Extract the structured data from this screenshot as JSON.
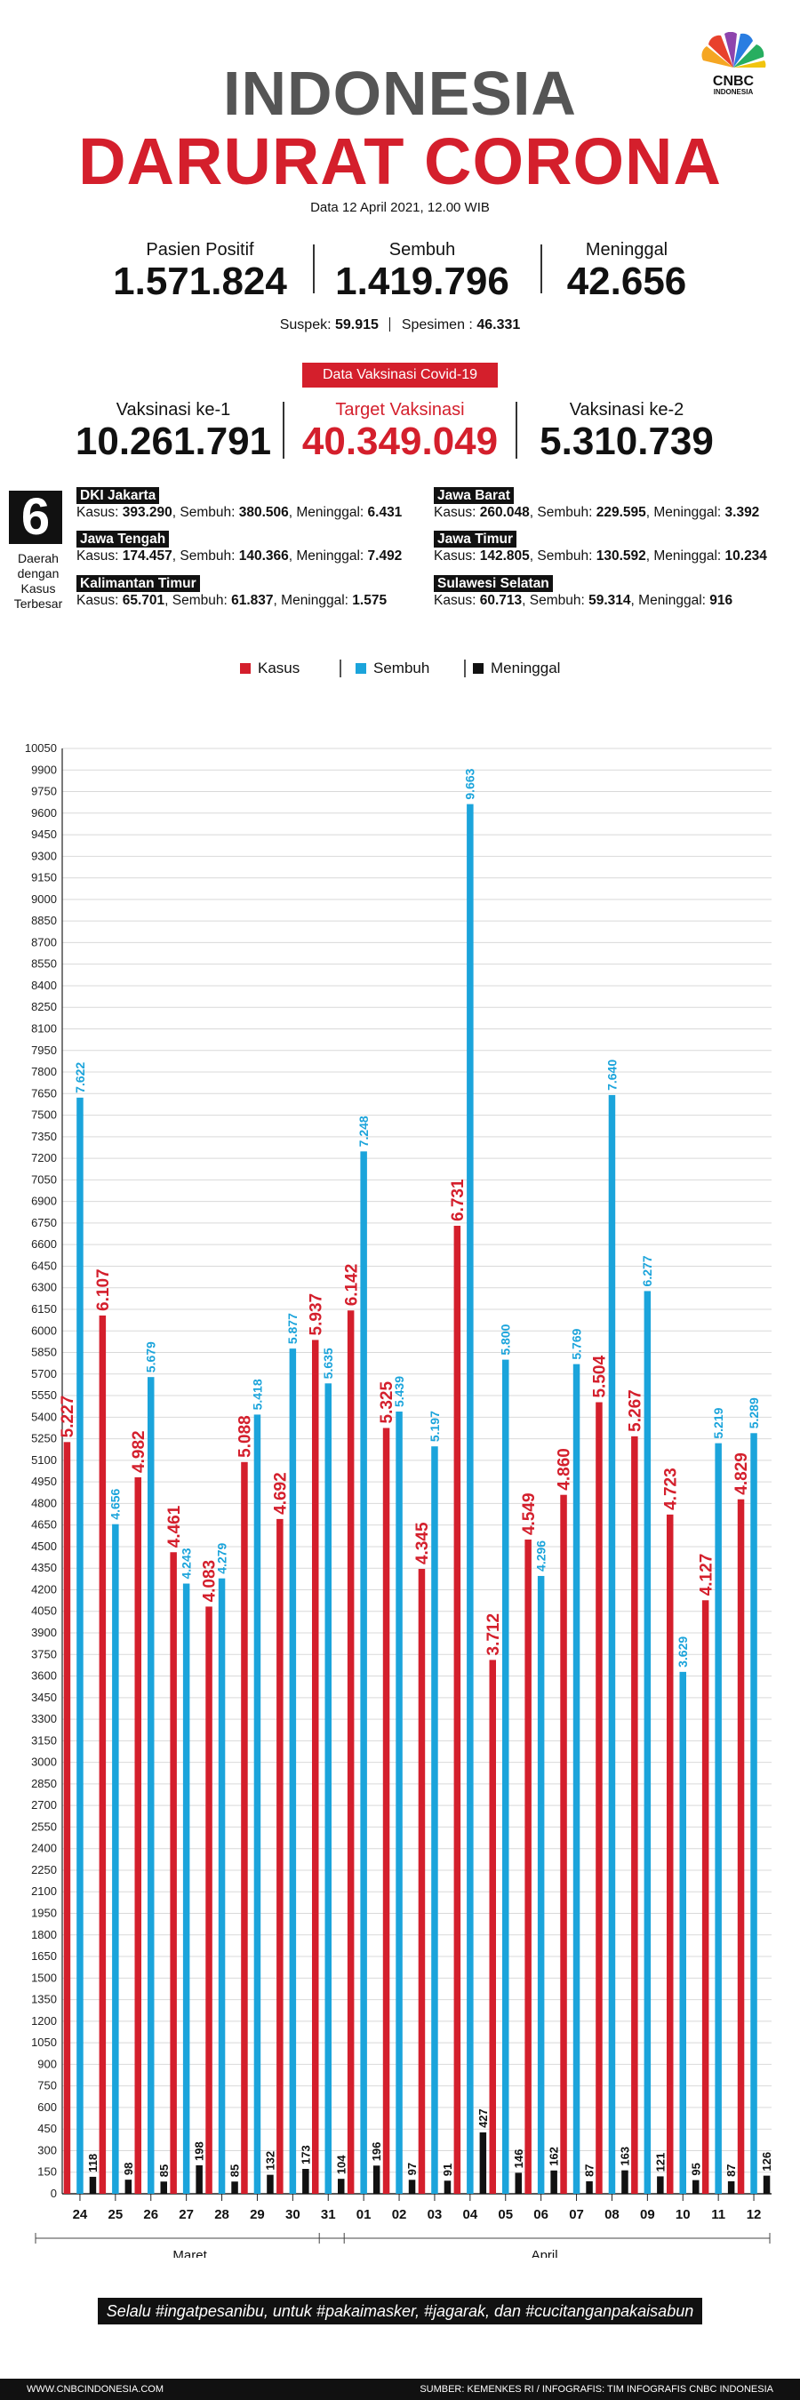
{
  "header": {
    "brand": "CNBC",
    "brand_sub": "INDONESIA",
    "title_line1": "INDONESIA",
    "title_line2": "DARURAT CORONA",
    "date": "Data 12 April 2021, 12.00 WIB"
  },
  "stats": {
    "positive_label": "Pasien Positif",
    "positive_value": "1.571.824",
    "recovered_label": "Sembuh",
    "recovered_value": "1.419.796",
    "deaths_label": "Meninggal",
    "deaths_value": "42.656",
    "suspect_label": "Suspek:",
    "suspect_value": "59.915",
    "specimen_label": "Spesimen :",
    "specimen_value": "46.331"
  },
  "vaccination": {
    "banner": "Data Vaksinasi Covid-19",
    "dose1_label": "Vaksinasi ke-1",
    "dose1_value": "10.261.791",
    "target_label": "Target Vaksinasi",
    "target_value": "40.349.049",
    "dose2_label": "Vaksinasi ke-2",
    "dose2_value": "5.310.739"
  },
  "regions": {
    "count": "6",
    "caption": [
      "Daerah",
      "dengan",
      "Kasus",
      "Terbesar"
    ],
    "kasus_label": "Kasus:",
    "sembuh_label": "Sembuh:",
    "meninggal_label": "Meninggal:",
    "items": [
      {
        "name": "DKI Jakarta",
        "kasus": "393.290",
        "sembuh": "380.506",
        "meninggal": "6.431"
      },
      {
        "name": "Jawa Barat",
        "kasus": "260.048",
        "sembuh": "229.595",
        "meninggal": "3.392"
      },
      {
        "name": "Jawa Tengah",
        "kasus": "174.457",
        "sembuh": "140.366",
        "meninggal": "7.492"
      },
      {
        "name": "Jawa Timur",
        "kasus": "142.805",
        "sembuh": "130.592",
        "meninggal": "10.234"
      },
      {
        "name": "Kalimantan Timur",
        "kasus": "65.701",
        "sembuh": "61.837",
        "meninggal": "1.575"
      },
      {
        "name": "Sulawesi Selatan",
        "kasus": "60.713",
        "sembuh": "59.314",
        "meninggal": "916"
      }
    ]
  },
  "colors": {
    "kasus": "#d41f2c",
    "sembuh": "#1ba4db",
    "meninggal": "#111111"
  },
  "chart_data": {
    "type": "bar",
    "legend_placement": "top-center",
    "grid": true,
    "ylim": [
      0,
      10050
    ],
    "ytick_step": 150,
    "categories": [
      "24",
      "25",
      "26",
      "27",
      "28",
      "29",
      "30",
      "31",
      "01",
      "02",
      "03",
      "04",
      "05",
      "06",
      "07",
      "08",
      "09",
      "10",
      "11",
      "12"
    ],
    "groups": [
      {
        "label": "Maret",
        "from": 0,
        "to": 7
      },
      {
        "label": "April",
        "from": 8,
        "to": 19
      }
    ],
    "series": [
      {
        "name": "Kasus",
        "key": "kasus",
        "values": [
          5227,
          6107,
          4982,
          4461,
          4083,
          5088,
          4692,
          5937,
          6142,
          5325,
          4345,
          6731,
          3712,
          4549,
          4860,
          5504,
          5267,
          4723,
          4127,
          4829
        ]
      },
      {
        "name": "Sembuh",
        "key": "sembuh",
        "values": [
          7622,
          4656,
          5679,
          4243,
          4279,
          5418,
          5877,
          5635,
          7248,
          5439,
          5197,
          9663,
          5800,
          4296,
          5769,
          7640,
          6277,
          3629,
          5219,
          5289
        ]
      },
      {
        "name": "Meninggal",
        "key": "meninggal",
        "values": [
          118,
          98,
          85,
          198,
          85,
          132,
          173,
          104,
          196,
          97,
          91,
          427,
          146,
          162,
          87,
          163,
          121,
          95,
          87,
          126
        ]
      }
    ],
    "labels": {
      "kasus": [
        "5.227",
        "6.107",
        "4.982",
        "4.461",
        "4.083",
        "5.088",
        "4.692",
        "5.937",
        "6.142",
        "5.325",
        "4.345",
        "6.731",
        "3.712",
        "4.549",
        "4.860",
        "5.504",
        "5.267",
        "4.723",
        "4.127",
        "4.829"
      ],
      "sembuh": [
        "7.622",
        "4.656",
        "5.679",
        "4.243",
        "4.279",
        "5.418",
        "5.877",
        "5.635",
        "7.248",
        "5.439",
        "5.197",
        "9.663",
        "5.800",
        "4.296",
        "5.769",
        "7.640",
        "6.277",
        "3.629",
        "5.219",
        "5.289"
      ],
      "meninggal": [
        "118",
        "98",
        "85",
        "198",
        "85",
        "132",
        "173",
        "104",
        "196",
        "97",
        "91",
        "427",
        "146",
        "162",
        "87",
        "163",
        "121",
        "95",
        "87",
        "126"
      ]
    }
  },
  "slogan": "Selalu #ingatpesanibu, untuk #pakaimasker, #jagarak, dan #cucitanganpakaisabun",
  "footer": {
    "site": "WWW.CNBCINDONESIA.COM",
    "source": "SUMBER: KEMENKES RI / INFOGRAFIS: TIM INFOGRAFIS CNBC INDONESIA"
  }
}
